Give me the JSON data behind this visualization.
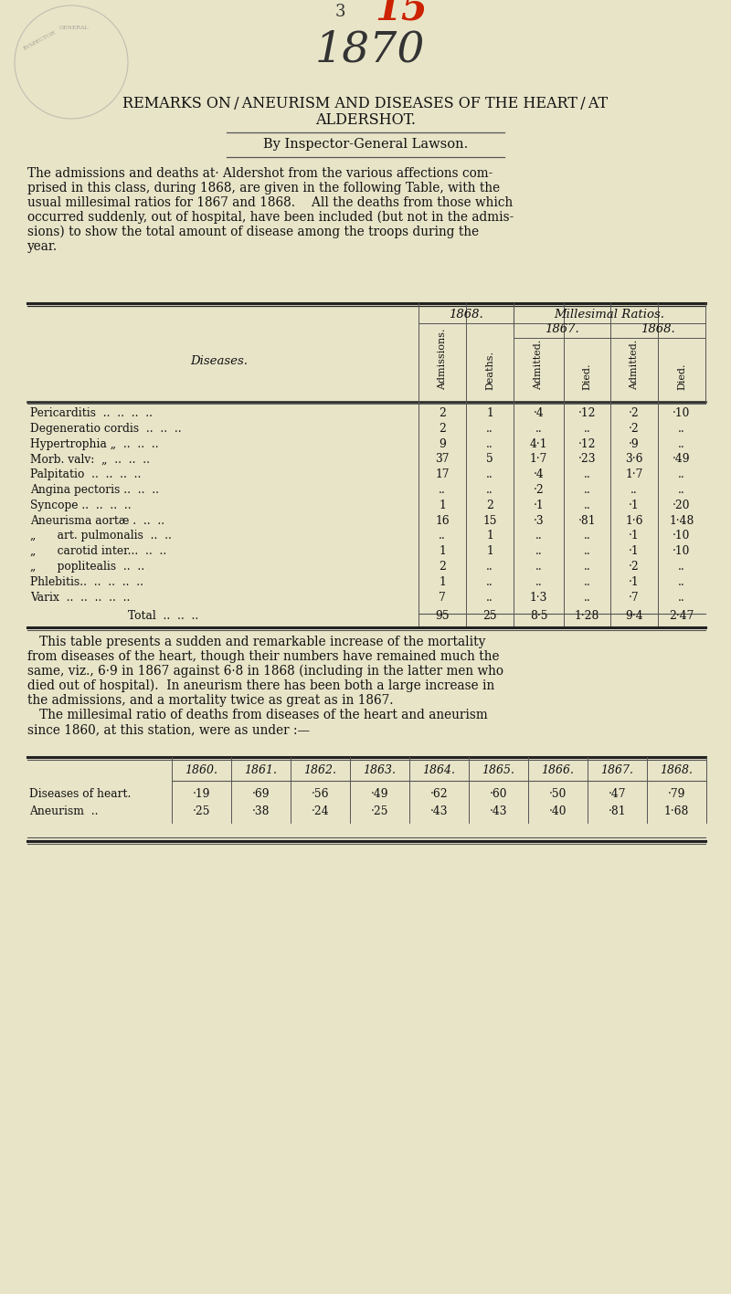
{
  "page_color": "#e8e4c8",
  "title_line1": "REMARKS ON / ANEURISM AND DISEASES OF THE HEART / AT",
  "title_line2": "ALDERSHOT.",
  "byline": "By Inspector-General Lawson.",
  "para1_lines": [
    "The admissions and deaths at· Aldershot from the various affections com-",
    "prised in this class, during 1868, are given in the following Table, with the",
    "usual millesimal ratios for 1867 and 1868.  All the deaths from those which",
    "occurred suddenly, out of hospital, have been included (but not in the admis-",
    "sions) to show the total amount of disease among the troops during the",
    "year."
  ],
  "col_headers_rotated": [
    "Admissions.",
    "Deaths.",
    "Admitted.",
    "Died.",
    "Admitted.",
    "Died."
  ],
  "table1_rows": [
    [
      "Pericarditis  ..  ..  ..  ..",
      "2",
      "1",
      "·4",
      "·12",
      "·2",
      "·10"
    ],
    [
      "Degeneratio cordis  ..  ..  ..",
      "2",
      "..",
      "..",
      "..",
      "·2",
      ".."
    ],
    [
      "Hypertrophia „  ..  ..  ..",
      "9",
      "..",
      "4·1",
      "·12",
      "·9",
      ".."
    ],
    [
      "Morb. valv:  „  ..  ..  ..",
      "37",
      "5",
      "1·7",
      "·23",
      "3·6",
      "·49"
    ],
    [
      "Palpitatio  ..  ..  ..  ..",
      "17",
      "..",
      "·4",
      "..",
      "1·7",
      ".."
    ],
    [
      "Angina pectoris ..  ..  ..",
      "..",
      "..",
      "·2",
      "..",
      "..",
      ".."
    ],
    [
      "Syncope ..  ..  ..  ..",
      "1",
      "2",
      "·1",
      "..",
      "·1",
      "·20"
    ],
    [
      "Aneurisma aortæ .  ..  ..",
      "16",
      "15",
      "·3",
      "·81",
      "1·6",
      "1·48"
    ],
    [
      "„      art. pulmonalis  ..  ..",
      "..",
      "1",
      "..",
      "..",
      "·1",
      "·10"
    ],
    [
      "„      carotid inter...  ..  ..",
      "1",
      "1",
      "..",
      "..",
      "·1",
      "·10"
    ],
    [
      "„      poplitealis  ..  ..",
      "2",
      "..",
      "..",
      "..",
      "·2",
      ".."
    ],
    [
      "Phlebitis..  ..  ..  ..  ..",
      "1",
      "..",
      "..",
      "..",
      "·1",
      ".."
    ],
    [
      "Varix  ..  ..  ..  ..  ..",
      "7",
      "..",
      "1·3",
      "..",
      "·7",
      ".."
    ]
  ],
  "table1_total": [
    "Total  ..  ..  ..",
    "95",
    "25",
    "8·5",
    "1·28",
    "9·4",
    "2·47"
  ],
  "para2_lines": [
    "   This table presents a sudden and remarkable increase of the mortality",
    "from diseases of the heart, though their numbers have remained much the",
    "same, viz., 6·9 in 1867 against 6·8 in 1868 (including in the latter men who",
    "died out of hospital).  In aneurism there has been both a large increase in",
    "the admissions, and a mortality twice as great as in 1867.",
    "   The millesimal ratio of deaths from diseases of the heart and aneurism",
    "since 1860, at this station, were as under :—"
  ],
  "table2_years": [
    "1860.",
    "1861.",
    "1862.",
    "1863.",
    "1864.",
    "1865.",
    "1866.",
    "1867.",
    "1868."
  ],
  "table2_rows": [
    [
      "Diseases of heart.",
      "·19",
      "·69",
      "·56",
      "·49",
      "·62",
      "·60",
      "·50",
      "·47",
      "·79"
    ],
    [
      "Aneurism  ..",
      "·25",
      "·38",
      "·24",
      "·25",
      "·43",
      "·43",
      "·40",
      "·81",
      "1·68"
    ]
  ]
}
